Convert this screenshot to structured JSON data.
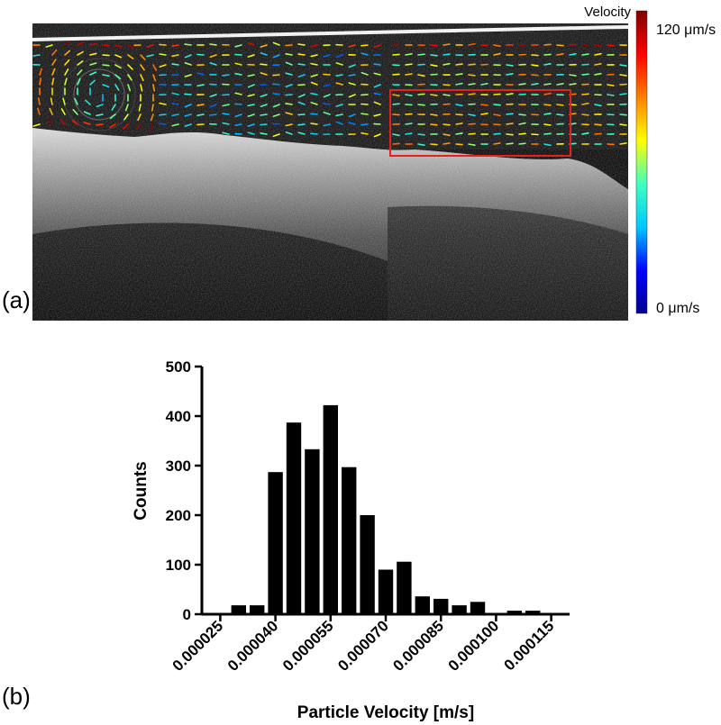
{
  "panels": {
    "a_label": "(a)",
    "b_label": "(b)"
  },
  "colorbar": {
    "title": "Velocity",
    "max_label": "120 μm/s",
    "min_label": "0 μm/s",
    "max_value": 120,
    "min_value": 0,
    "unit": "μm/s",
    "colors": [
      "#00008f",
      "#0000ff",
      "#00c8ff",
      "#40ffbf",
      "#ffff00",
      "#ff8000",
      "#ff0000",
      "#800000"
    ]
  },
  "oct_image": {
    "roi_box_color": "#e8201c"
  },
  "chart_data": {
    "type": "bar",
    "xlabel": "Particle Velocity [m/s]",
    "ylabel": "Counts",
    "ylim": [
      0,
      500
    ],
    "xlim": [
      2e-05,
      0.00012
    ],
    "bin_width": 5e-06,
    "yticks": [
      0,
      100,
      200,
      300,
      400,
      500
    ],
    "ytick_labels": [
      "0",
      "100",
      "200",
      "300",
      "400",
      "500"
    ],
    "xticks": [
      2.5e-05,
      4e-05,
      5.5e-05,
      7e-05,
      8.5e-05,
      0.0001,
      0.000115
    ],
    "xtick_labels": [
      "0.000025",
      "0.000040",
      "0.000055",
      "0.000070",
      "0.000085",
      "0.000100",
      "0.000115"
    ],
    "bin_centers": [
      2.5e-05,
      3e-05,
      3.5e-05,
      4e-05,
      4.5e-05,
      5e-05,
      5.5e-05,
      6e-05,
      6.5e-05,
      7e-05,
      7.5e-05,
      8e-05,
      8.5e-05,
      9e-05,
      9.5e-05,
      0.0001,
      0.000105,
      0.00011,
      0.000115
    ],
    "values": [
      2,
      18,
      18,
      287,
      387,
      333,
      422,
      297,
      200,
      90,
      106,
      36,
      31,
      18,
      25,
      2,
      7,
      7,
      2
    ],
    "bar_color": "#000000"
  }
}
